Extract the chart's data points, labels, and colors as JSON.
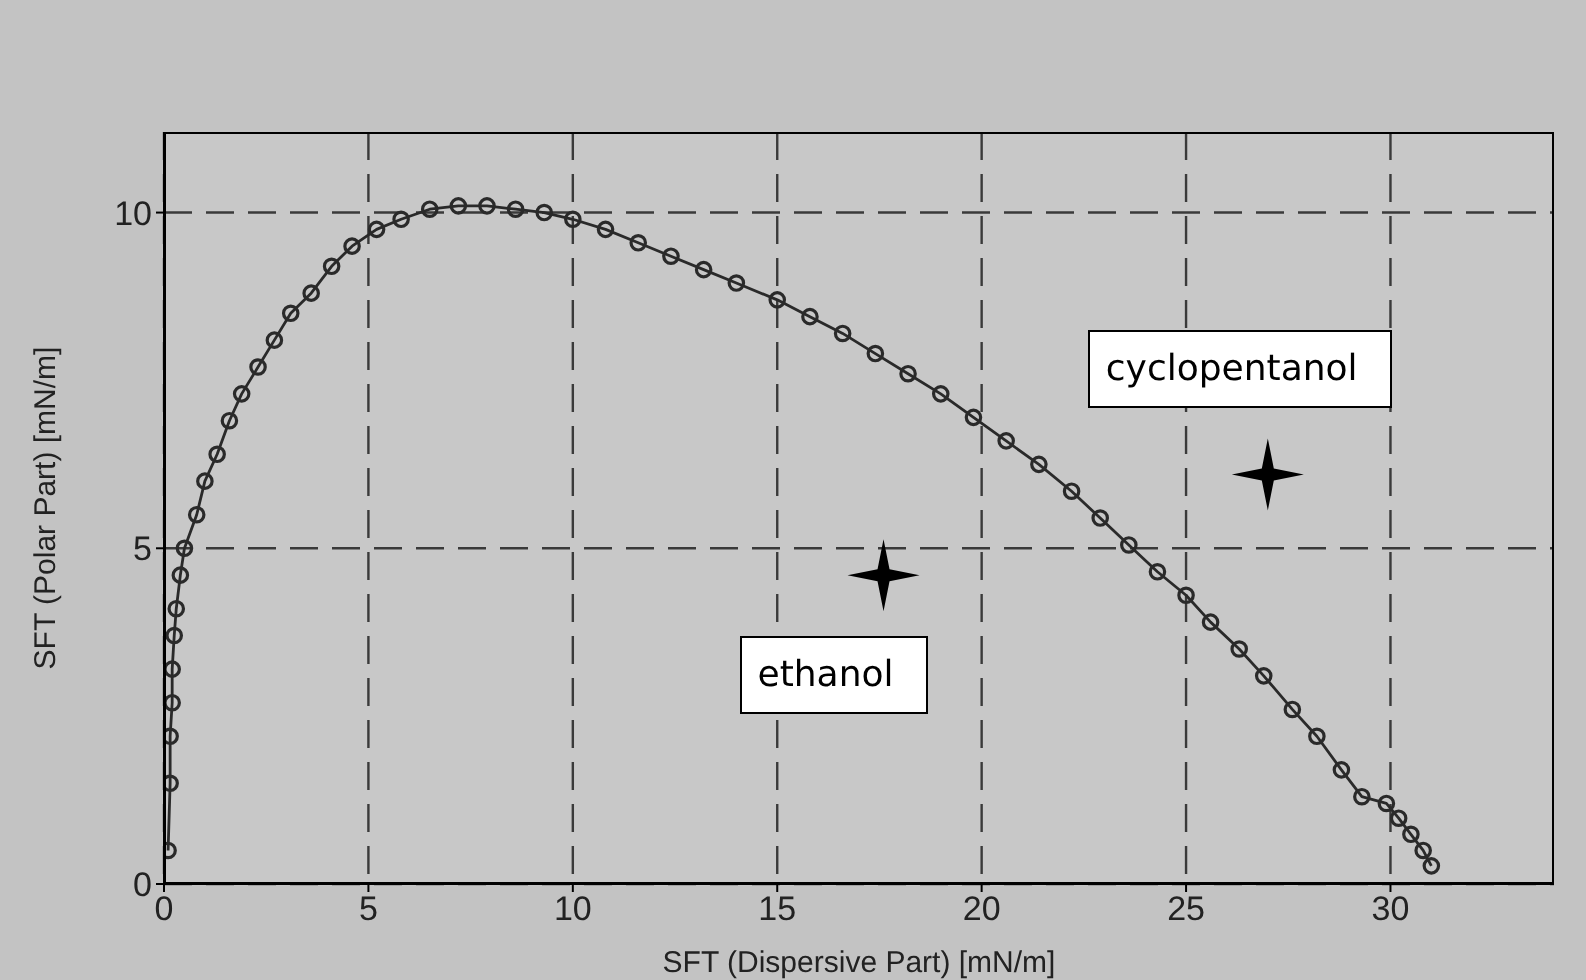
{
  "chart_data": {
    "type": "line",
    "xlabel": "SFT (Dispersive Part) [mN/m]",
    "ylabel": "SFT (Polar Part) [mN/m]",
    "xlim": [
      0,
      34
    ],
    "ylim": [
      0,
      11.2
    ],
    "xticks": [
      0,
      5,
      10,
      15,
      20,
      25,
      30
    ],
    "yticks": [
      0,
      5,
      10
    ],
    "grid": true,
    "line_style": "solid",
    "series": [
      {
        "marker": "circle",
        "color": "#2a2a2a",
        "x": [
          0.1,
          0.15,
          0.15,
          0.2,
          0.2,
          0.25,
          0.3,
          0.4,
          0.5,
          0.8,
          1.0,
          1.3,
          1.6,
          1.9,
          2.3,
          2.7,
          3.1,
          3.6,
          4.1,
          4.6,
          5.2,
          5.8,
          6.5,
          7.2,
          7.9,
          8.6,
          9.3,
          10,
          10.8,
          11.6,
          12.4,
          13.2,
          14,
          15,
          15.8,
          16.6,
          17.4,
          18.2,
          19,
          19.8,
          20.6,
          21.4,
          22.2,
          22.9,
          23.6,
          24.3,
          25,
          25.6,
          26.3,
          26.9,
          27.6,
          28.2,
          28.8,
          29.3,
          29.9,
          30.2,
          30.5,
          30.8,
          31.0
        ],
        "values": [
          0.5,
          1.5,
          2.2,
          2.7,
          3.2,
          3.7,
          4.1,
          4.6,
          5.0,
          5.5,
          6.0,
          6.4,
          6.9,
          7.3,
          7.7,
          8.1,
          8.5,
          8.8,
          9.2,
          9.5,
          9.75,
          9.9,
          10.05,
          10.1,
          10.1,
          10.05,
          10.0,
          9.9,
          9.75,
          9.55,
          9.35,
          9.15,
          8.95,
          8.7,
          8.45,
          8.2,
          7.9,
          7.6,
          7.3,
          6.95,
          6.6,
          6.25,
          5.85,
          5.45,
          5.05,
          4.65,
          4.3,
          3.9,
          3.5,
          3.1,
          2.6,
          2.2,
          1.7,
          1.3,
          1.2,
          0.98,
          0.74,
          0.5,
          0.27
        ]
      },
      {
        "type": "scatter",
        "marker": "star",
        "name": "ethanol",
        "color": "#000000",
        "x": [
          17.6
        ],
        "values": [
          4.6
        ]
      },
      {
        "type": "scatter",
        "marker": "star",
        "name": "cyclopentanol",
        "color": "#000000",
        "x": [
          27.0
        ],
        "values": [
          6.1
        ]
      }
    ]
  }
}
